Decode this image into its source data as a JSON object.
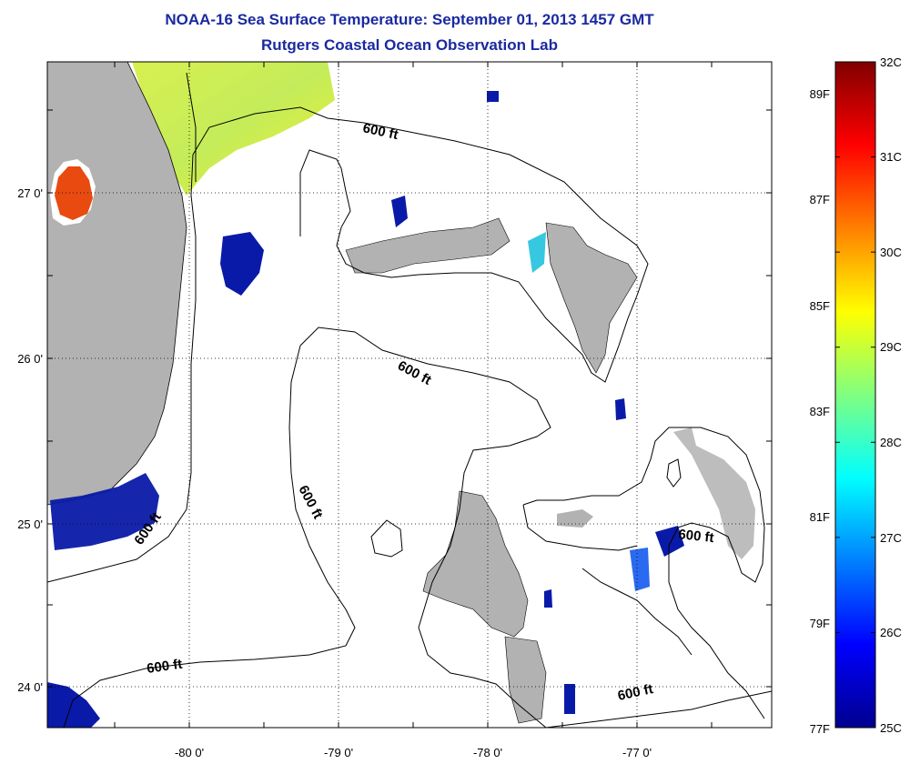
{
  "title_line1": "NOAA-16 Sea Surface Temperature:  September 01, 2013 1457 GMT",
  "title_line2": "Rutgers Coastal Ocean Observation Lab",
  "map": {
    "lat_labels": [
      "27 0'",
      "26 0'",
      "25 0'",
      "24 0'"
    ],
    "lon_labels": [
      "-80 0'",
      "-79 0'",
      "-78 0'",
      "-77 0'"
    ],
    "contour_labels": [
      "600 ft",
      "600 ft",
      "600 ft",
      "600 ft",
      "600 ft",
      "600 ft",
      "600 ft"
    ],
    "colors": {
      "land": "#b2b2b2",
      "water": "#ffffff",
      "contour": "#000000",
      "title": "#1a2aa0"
    }
  },
  "colorbar": {
    "min_c": 25,
    "max_c": 32,
    "celsius_labels": [
      "32C",
      "31C",
      "30C",
      "29C",
      "28C",
      "27C",
      "26C",
      "25C"
    ],
    "fahrenheit_labels": [
      "89F",
      "87F",
      "85F",
      "83F",
      "81F",
      "79F",
      "77F"
    ],
    "colormap": "jet"
  }
}
